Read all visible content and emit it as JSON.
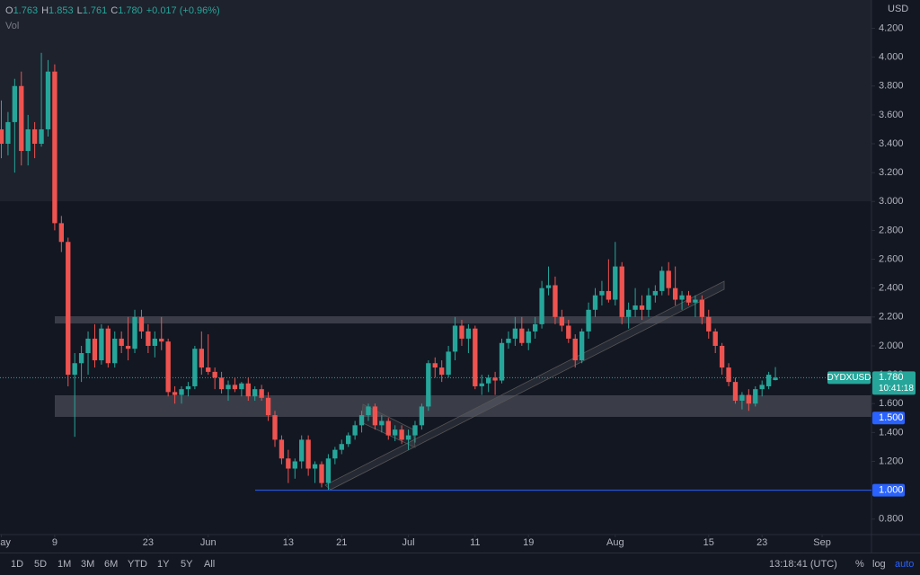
{
  "chart_data": {
    "type": "candlestick",
    "currency": "USD",
    "volume_label": "Vol",
    "legend": [
      {
        "label": "O",
        "value": "1.763"
      },
      {
        "label": "H",
        "value": "1.853"
      },
      {
        "label": "L",
        "value": "1.761"
      },
      {
        "label": "C",
        "value": "1.780"
      }
    ],
    "change": "+0.017 (+0.96%)",
    "up_color": "#26a69a",
    "down_color": "#ef5350",
    "open": [
      3.5,
      3.4,
      3.55,
      3.8,
      3.35,
      3.5,
      3.4,
      3.5,
      3.9,
      2.85,
      2.72,
      1.8,
      1.88,
      1.95,
      2.05,
      1.9,
      2.12,
      1.88,
      2.05,
      2.0,
      1.98,
      2.2,
      2.1,
      2.0,
      2.05,
      2.03,
      1.68,
      1.66,
      1.7,
      1.72,
      1.98,
      1.85,
      1.82,
      1.78,
      1.7,
      1.73,
      1.7,
      1.74,
      1.65,
      1.7,
      1.64,
      1.52,
      1.35,
      1.22,
      1.15,
      1.2,
      1.35,
      1.15,
      1.18,
      1.05,
      1.22,
      1.28,
      1.32,
      1.38,
      1.45,
      1.52,
      1.58,
      1.45,
      1.48,
      1.38,
      1.42,
      1.35,
      1.38,
      1.45,
      1.58,
      1.88,
      1.85,
      1.8,
      1.96,
      2.14,
      2.05,
      2.12,
      1.72,
      1.74,
      1.78,
      1.76,
      2.02,
      2.05,
      2.12,
      2.02,
      2.1,
      2.15,
      2.4,
      2.42,
      2.2,
      2.14,
      2.05,
      1.9,
      2.1,
      2.25,
      2.35,
      2.38,
      2.32,
      2.55,
      2.2,
      2.25,
      2.28,
      2.25,
      2.35,
      2.38,
      2.52,
      2.4,
      2.32,
      2.35,
      2.3,
      2.32,
      2.2,
      2.1,
      2.0,
      1.85,
      1.75,
      1.62,
      1.66,
      1.6,
      1.7,
      1.72,
      1.763
    ],
    "high": [
      3.7,
      3.62,
      3.85,
      3.9,
      3.6,
      3.55,
      4.03,
      3.98,
      3.95,
      2.9,
      2.75,
      1.95,
      2.0,
      2.1,
      2.15,
      2.15,
      2.14,
      2.1,
      2.1,
      2.2,
      2.25,
      2.25,
      2.15,
      2.1,
      2.2,
      2.05,
      1.72,
      1.72,
      1.75,
      2.0,
      2.1,
      2.08,
      1.85,
      1.82,
      1.76,
      1.78,
      1.75,
      1.78,
      1.72,
      1.73,
      1.68,
      1.55,
      1.38,
      1.28,
      1.22,
      1.38,
      1.38,
      1.2,
      1.2,
      1.25,
      1.3,
      1.35,
      1.4,
      1.48,
      1.55,
      1.6,
      1.6,
      1.52,
      1.5,
      1.45,
      1.45,
      1.42,
      1.48,
      1.6,
      1.9,
      1.92,
      1.9,
      2.0,
      2.2,
      2.18,
      2.15,
      2.14,
      1.8,
      1.8,
      1.82,
      2.05,
      2.1,
      2.2,
      2.2,
      2.12,
      2.2,
      2.45,
      2.55,
      2.48,
      2.25,
      2.18,
      2.08,
      2.12,
      2.3,
      2.4,
      2.45,
      2.6,
      2.72,
      2.58,
      2.3,
      2.4,
      2.35,
      2.4,
      2.42,
      2.55,
      2.58,
      2.55,
      2.38,
      2.38,
      2.35,
      2.35,
      2.25,
      2.12,
      2.02,
      1.88,
      1.78,
      1.68,
      1.7,
      1.72,
      1.76,
      1.82,
      1.853
    ],
    "low": [
      3.3,
      3.32,
      3.2,
      3.25,
      3.25,
      3.3,
      3.38,
      3.45,
      2.8,
      2.65,
      1.72,
      1.37,
      1.75,
      1.8,
      1.85,
      1.87,
      1.85,
      1.85,
      1.95,
      1.9,
      1.95,
      2.05,
      1.95,
      1.92,
      1.97,
      1.65,
      1.6,
      1.6,
      1.65,
      1.7,
      1.8,
      1.8,
      1.7,
      1.67,
      1.62,
      1.68,
      1.65,
      1.62,
      1.62,
      1.62,
      1.48,
      1.3,
      1.18,
      1.05,
      1.08,
      1.15,
      1.1,
      1.05,
      1.02,
      1.0,
      1.18,
      1.25,
      1.3,
      1.35,
      1.4,
      1.48,
      1.42,
      1.4,
      1.35,
      1.34,
      1.32,
      1.28,
      1.33,
      1.42,
      1.55,
      1.78,
      1.75,
      1.78,
      1.9,
      2.0,
      1.95,
      1.7,
      1.66,
      1.68,
      1.66,
      1.74,
      1.98,
      2.0,
      2.0,
      1.97,
      2.05,
      2.12,
      2.35,
      2.15,
      2.1,
      2.02,
      1.85,
      1.88,
      2.05,
      2.2,
      2.28,
      2.3,
      2.28,
      2.15,
      2.12,
      2.2,
      2.18,
      2.2,
      2.3,
      2.35,
      2.35,
      2.28,
      2.25,
      2.28,
      2.2,
      2.15,
      2.05,
      1.95,
      1.8,
      1.72,
      1.6,
      1.56,
      1.55,
      1.58,
      1.65,
      1.7,
      1.761
    ],
    "close": [
      3.4,
      3.55,
      3.8,
      3.35,
      3.5,
      3.4,
      3.5,
      3.9,
      2.85,
      2.72,
      1.8,
      1.88,
      1.95,
      2.05,
      1.9,
      2.12,
      1.88,
      2.05,
      2.0,
      1.98,
      2.2,
      2.1,
      2.0,
      2.05,
      2.03,
      1.68,
      1.66,
      1.7,
      1.72,
      1.98,
      1.85,
      1.82,
      1.78,
      1.7,
      1.73,
      1.7,
      1.74,
      1.65,
      1.7,
      1.64,
      1.52,
      1.35,
      1.22,
      1.15,
      1.2,
      1.35,
      1.15,
      1.18,
      1.05,
      1.22,
      1.28,
      1.32,
      1.38,
      1.45,
      1.52,
      1.58,
      1.45,
      1.48,
      1.38,
      1.42,
      1.35,
      1.38,
      1.45,
      1.58,
      1.88,
      1.85,
      1.8,
      1.96,
      2.14,
      2.05,
      2.12,
      1.72,
      1.74,
      1.78,
      1.76,
      2.02,
      2.05,
      2.12,
      2.02,
      2.1,
      2.15,
      2.4,
      2.42,
      2.2,
      2.14,
      2.05,
      1.9,
      2.1,
      2.25,
      2.35,
      2.38,
      2.32,
      2.55,
      2.2,
      2.25,
      2.28,
      2.25,
      2.35,
      2.38,
      2.52,
      2.4,
      2.32,
      2.35,
      2.3,
      2.32,
      2.2,
      2.1,
      2.0,
      1.85,
      1.75,
      1.62,
      1.66,
      1.6,
      1.7,
      1.73,
      1.8,
      1.78
    ],
    "xlim": [
      -0.2,
      130.4
    ],
    "xticks": [
      {
        "value": 0,
        "label": "May"
      },
      {
        "value": 8,
        "label": "9"
      },
      {
        "value": 22,
        "label": "23"
      },
      {
        "value": 31,
        "label": "Jun"
      },
      {
        "value": 43,
        "label": "13"
      },
      {
        "value": 51,
        "label": "21"
      },
      {
        "value": 61,
        "label": "Jul"
      },
      {
        "value": 71,
        "label": "11"
      },
      {
        "value": 79,
        "label": "19"
      },
      {
        "value": 92,
        "label": "Aug"
      },
      {
        "value": 106,
        "label": "15"
      },
      {
        "value": 114,
        "label": "23"
      },
      {
        "value": 123,
        "label": "Sep"
      }
    ],
    "ylim": [
      0.6928,
      4.3959
    ],
    "yticks": [
      {
        "value": 0.8,
        "label": "0.800"
      },
      {
        "value": 1.0,
        "label": "1.000"
      },
      {
        "value": 1.2,
        "label": "1.200"
      },
      {
        "value": 1.4,
        "label": "1.400"
      },
      {
        "value": 1.6,
        "label": "1.600"
      },
      {
        "value": 1.8,
        "label": "1.800"
      },
      {
        "value": 2.0,
        "label": "2.000"
      },
      {
        "value": 2.2,
        "label": "2.200"
      },
      {
        "value": 2.4,
        "label": "2.400"
      },
      {
        "value": 2.6,
        "label": "2.600"
      },
      {
        "value": 2.8,
        "label": "2.800"
      },
      {
        "value": 3.0,
        "label": "3.000"
      },
      {
        "value": 3.2,
        "label": "3.200"
      },
      {
        "value": 3.4,
        "label": "3.400"
      },
      {
        "value": 3.6,
        "label": "3.600"
      },
      {
        "value": 3.8,
        "label": "3.800"
      },
      {
        "value": 4.0,
        "label": "4.000"
      },
      {
        "value": 4.2,
        "label": "4.200"
      }
    ],
    "last_price": {
      "value": 1.78,
      "label": "1.780",
      "symbol": "DYDXUSD",
      "countdown": "10:41:18",
      "color": "#26a69a"
    },
    "price_lines": [
      {
        "value": 1.5,
        "label": "1.500",
        "color": "#2962ff",
        "line": false
      },
      {
        "value": 1.0,
        "label": "1.000",
        "color": "#2962ff",
        "line": true
      }
    ],
    "toolbar": {
      "ranges": [
        "1D",
        "5D",
        "1M",
        "3M",
        "6M",
        "YTD",
        "1Y",
        "5Y",
        "All"
      ],
      "time": "13:18:41 (UTC)",
      "options": [
        "%",
        "log",
        "auto"
      ]
    }
  }
}
